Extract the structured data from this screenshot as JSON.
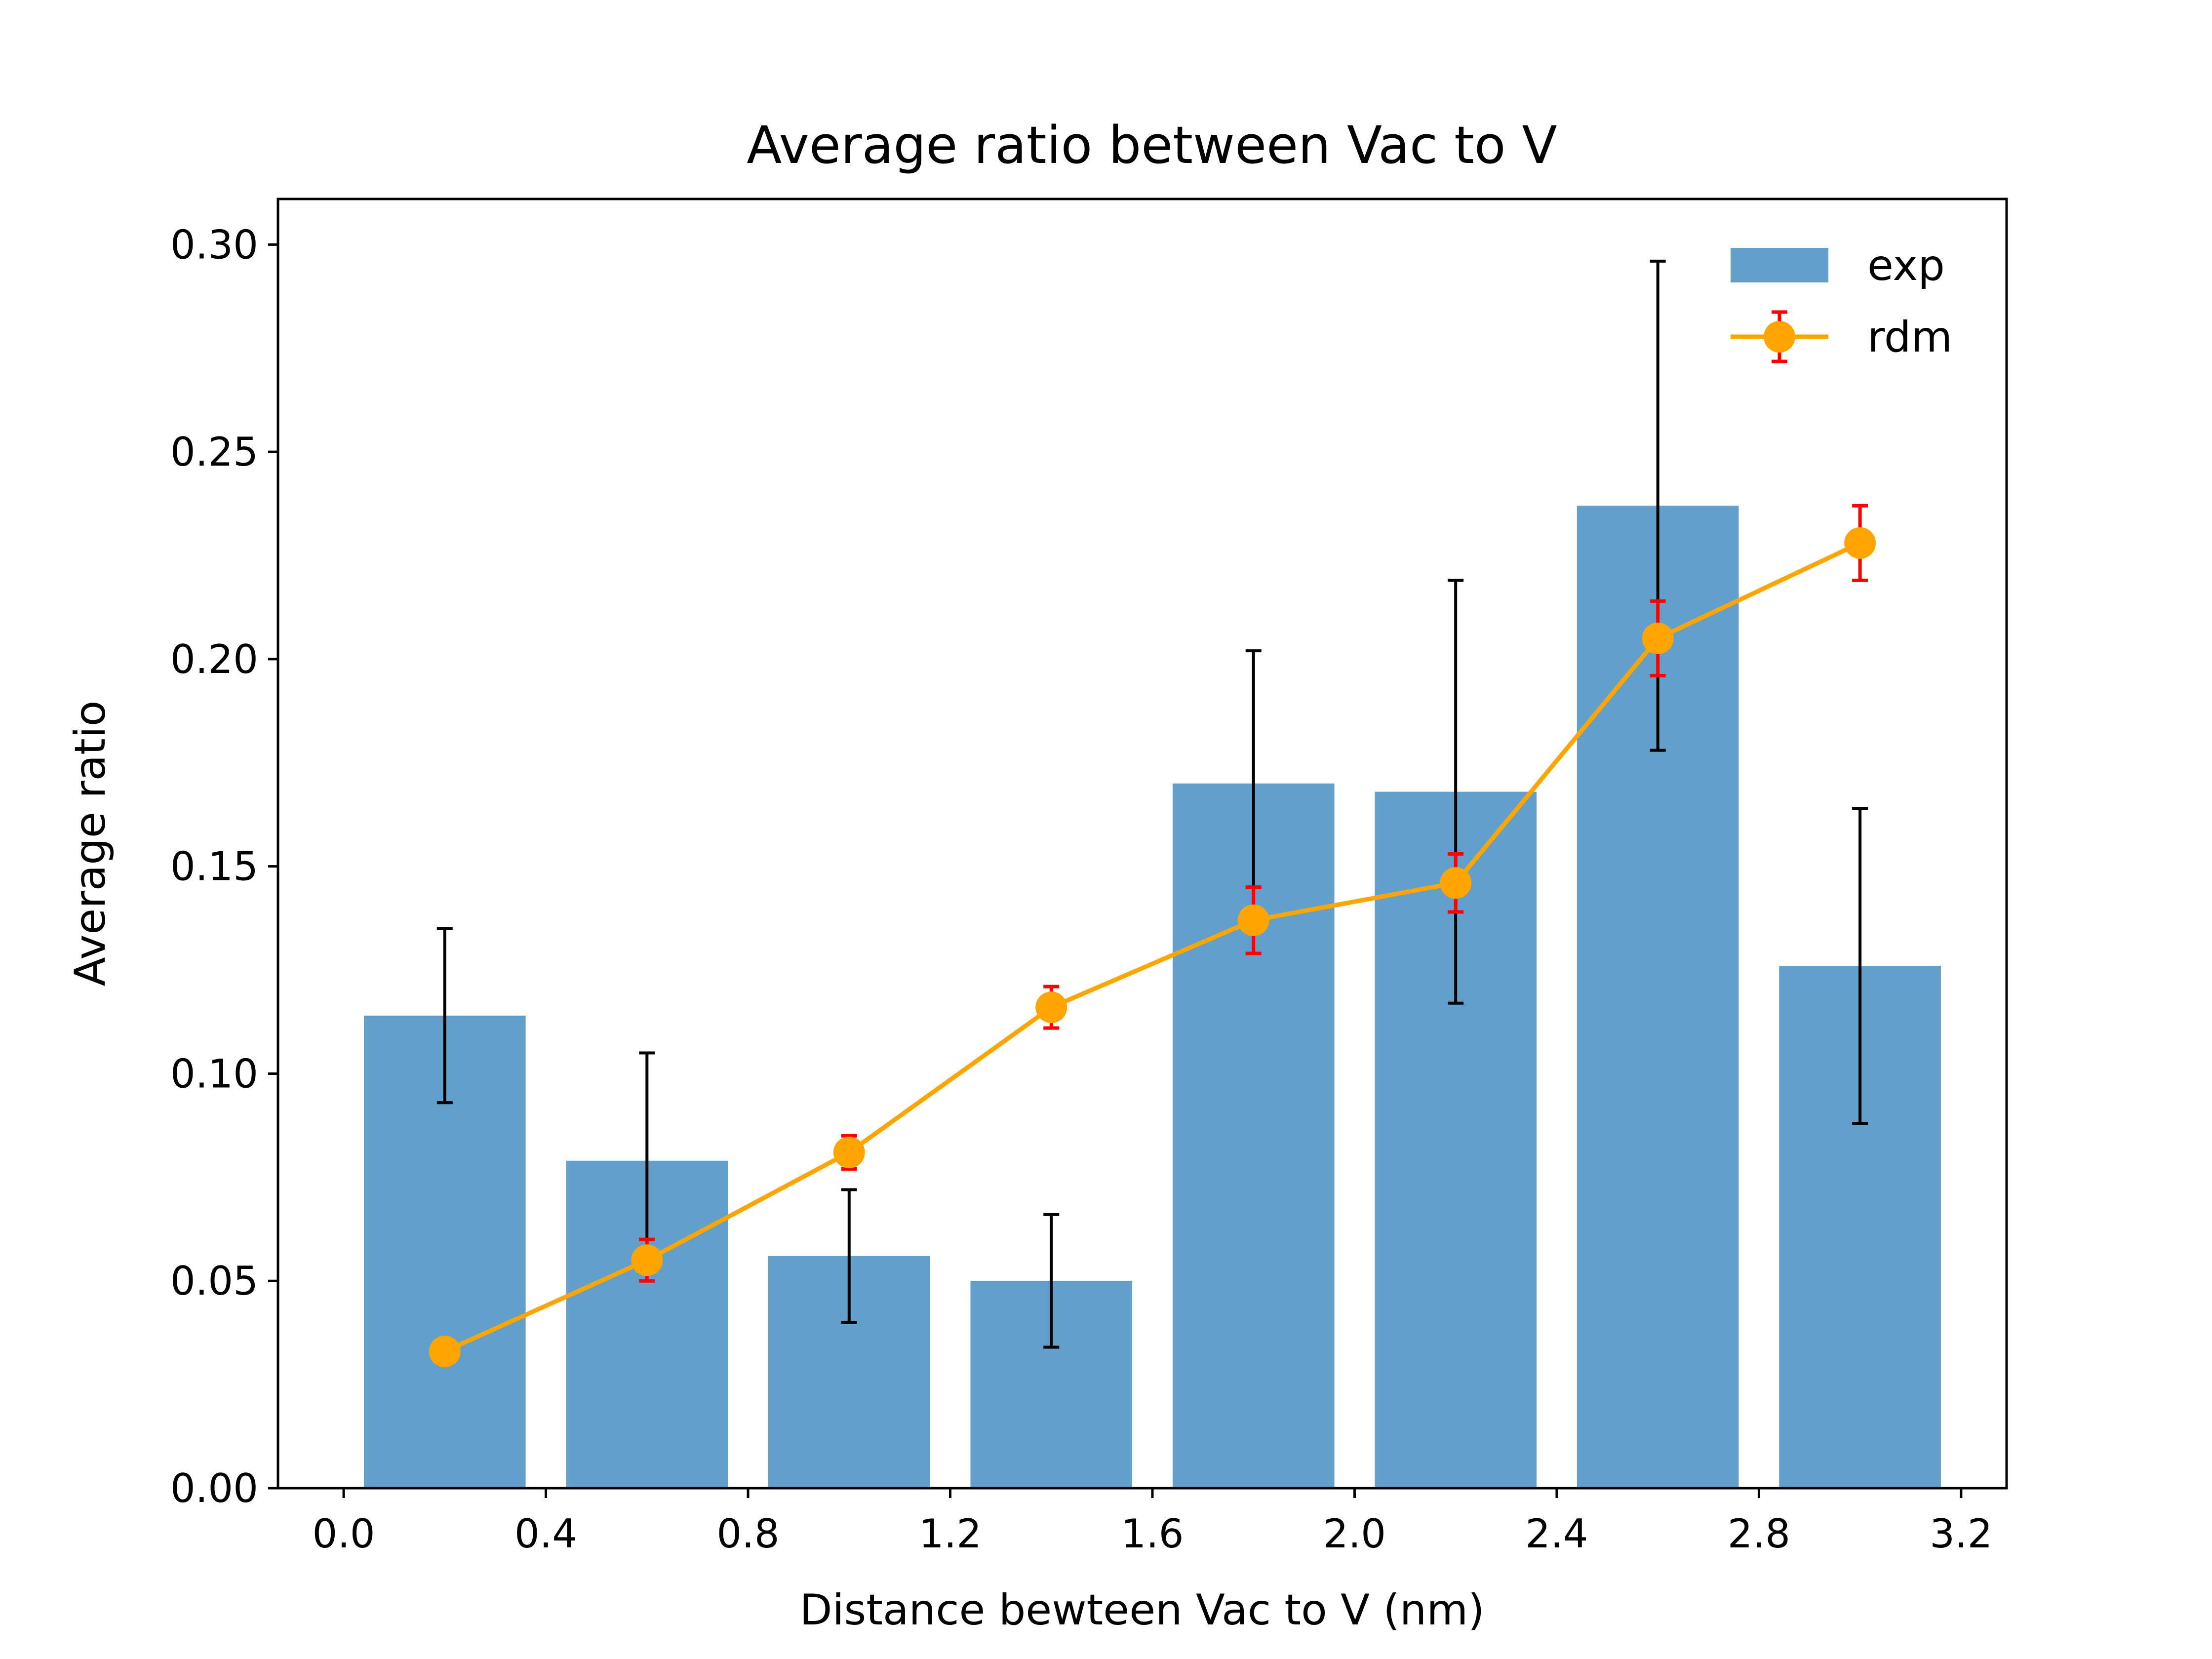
{
  "chart_data": {
    "type": "bar",
    "title": "Average ratio between Vac to V",
    "xlabel": "Distance bewteen Vac to V (nm)",
    "ylabel": "Average ratio",
    "xlim": [
      -0.13,
      3.29
    ],
    "ylim": [
      0.0,
      0.311
    ],
    "x_ticks": [
      0.0,
      0.4,
      0.8,
      1.2,
      1.6,
      2.0,
      2.4,
      2.8,
      3.2
    ],
    "x_tick_labels": [
      "0.0",
      "0.4",
      "0.8",
      "1.2",
      "1.6",
      "2.0",
      "2.4",
      "2.8",
      "3.2"
    ],
    "y_ticks": [
      0.0,
      0.05,
      0.1,
      0.15,
      0.2,
      0.25,
      0.3
    ],
    "y_tick_labels": [
      "0.00",
      "0.05",
      "0.10",
      "0.15",
      "0.20",
      "0.25",
      "0.30"
    ],
    "grid": false,
    "legend_position": "upper right",
    "bar_width": 0.32,
    "series": [
      {
        "name": "exp",
        "kind": "bar",
        "color": "#629fca",
        "error_color": "#000000",
        "x": [
          0.2,
          0.6,
          1.0,
          1.4,
          1.8,
          2.2,
          2.6,
          3.0
        ],
        "values": [
          0.114,
          0.079,
          0.056,
          0.05,
          0.17,
          0.168,
          0.237,
          0.126
        ],
        "errors": [
          0.021,
          0.026,
          0.016,
          0.016,
          0.032,
          0.051,
          0.059,
          0.038
        ]
      },
      {
        "name": "rdm",
        "kind": "line",
        "color": "#ffa500",
        "error_color": "#ff0000",
        "x": [
          0.2,
          0.6,
          1.0,
          1.4,
          1.8,
          2.2,
          2.6,
          3.0
        ],
        "values": [
          0.033,
          0.055,
          0.081,
          0.116,
          0.137,
          0.146,
          0.205,
          0.228
        ],
        "errors": [
          0.003,
          0.005,
          0.004,
          0.005,
          0.008,
          0.007,
          0.009,
          0.009
        ]
      }
    ]
  }
}
